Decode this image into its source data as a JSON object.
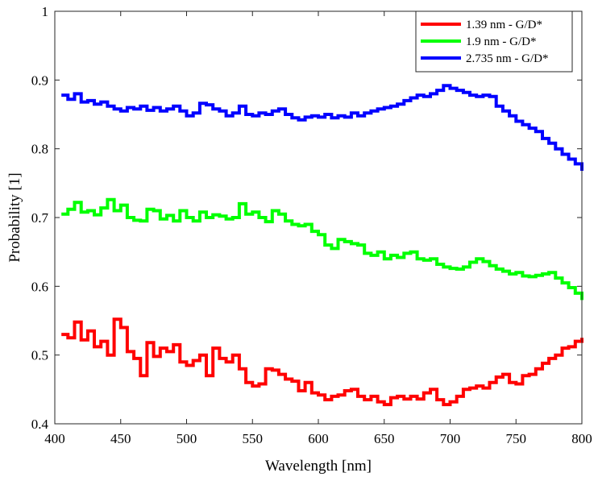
{
  "chart_data": {
    "type": "line",
    "xlabel": "Wavelength [nm]",
    "ylabel": "Probability [1]",
    "xlim": [
      400,
      800
    ],
    "ylim": [
      0.4,
      1.0
    ],
    "x_ticks": [
      400,
      450,
      500,
      550,
      600,
      650,
      700,
      750,
      800
    ],
    "y_ticks": [
      0.4,
      0.5,
      0.6,
      0.7,
      0.8,
      0.9,
      1.0
    ],
    "y_tick_labels": [
      "0.4",
      "0.5",
      "0.6",
      "0.7",
      "0.8",
      "0.9",
      "1"
    ],
    "grid": false,
    "legend_position": "top-right",
    "x": [
      405,
      410,
      415,
      420,
      425,
      430,
      435,
      440,
      445,
      450,
      455,
      460,
      465,
      470,
      475,
      480,
      485,
      490,
      495,
      500,
      505,
      510,
      515,
      520,
      525,
      530,
      535,
      540,
      545,
      550,
      555,
      560,
      565,
      570,
      575,
      580,
      585,
      590,
      595,
      600,
      605,
      610,
      615,
      620,
      625,
      630,
      635,
      640,
      645,
      650,
      655,
      660,
      665,
      670,
      675,
      680,
      685,
      690,
      695,
      700,
      705,
      710,
      715,
      720,
      725,
      730,
      735,
      740,
      745,
      750,
      755,
      760,
      765,
      770,
      775,
      780,
      785,
      790,
      795,
      800
    ],
    "series": [
      {
        "name": "1.39 nm - G/D*",
        "color": "#ff0000",
        "values": [
          0.53,
          0.525,
          0.548,
          0.522,
          0.535,
          0.512,
          0.52,
          0.5,
          0.552,
          0.54,
          0.505,
          0.495,
          0.47,
          0.518,
          0.498,
          0.51,
          0.505,
          0.515,
          0.49,
          0.485,
          0.492,
          0.5,
          0.47,
          0.51,
          0.495,
          0.49,
          0.5,
          0.48,
          0.46,
          0.455,
          0.458,
          0.48,
          0.478,
          0.472,
          0.465,
          0.462,
          0.448,
          0.46,
          0.445,
          0.442,
          0.435,
          0.44,
          0.442,
          0.448,
          0.45,
          0.44,
          0.435,
          0.44,
          0.432,
          0.428,
          0.438,
          0.44,
          0.436,
          0.44,
          0.436,
          0.445,
          0.45,
          0.435,
          0.428,
          0.432,
          0.44,
          0.45,
          0.452,
          0.455,
          0.452,
          0.46,
          0.468,
          0.472,
          0.46,
          0.458,
          0.47,
          0.472,
          0.48,
          0.488,
          0.495,
          0.5,
          0.51,
          0.512,
          0.52,
          0.525
        ]
      },
      {
        "name": "1.9 nm - G/D*",
        "color": "#00ff00",
        "values": [
          0.705,
          0.712,
          0.722,
          0.708,
          0.71,
          0.704,
          0.714,
          0.726,
          0.71,
          0.718,
          0.7,
          0.696,
          0.695,
          0.712,
          0.71,
          0.698,
          0.703,
          0.695,
          0.71,
          0.7,
          0.695,
          0.708,
          0.7,
          0.704,
          0.702,
          0.698,
          0.7,
          0.72,
          0.705,
          0.708,
          0.7,
          0.694,
          0.71,
          0.705,
          0.695,
          0.69,
          0.688,
          0.69,
          0.68,
          0.675,
          0.66,
          0.655,
          0.668,
          0.665,
          0.662,
          0.66,
          0.648,
          0.645,
          0.65,
          0.64,
          0.645,
          0.642,
          0.648,
          0.65,
          0.64,
          0.638,
          0.64,
          0.632,
          0.628,
          0.626,
          0.625,
          0.628,
          0.635,
          0.64,
          0.636,
          0.63,
          0.625,
          0.622,
          0.618,
          0.62,
          0.615,
          0.614,
          0.616,
          0.618,
          0.62,
          0.612,
          0.605,
          0.598,
          0.59,
          0.58
        ]
      },
      {
        "name": "2.735 nm - G/D*",
        "color": "#0000ff",
        "values": [
          0.878,
          0.872,
          0.88,
          0.868,
          0.87,
          0.865,
          0.868,
          0.862,
          0.858,
          0.855,
          0.86,
          0.858,
          0.862,
          0.856,
          0.86,
          0.855,
          0.858,
          0.862,
          0.855,
          0.848,
          0.852,
          0.866,
          0.864,
          0.858,
          0.855,
          0.848,
          0.852,
          0.862,
          0.85,
          0.848,
          0.852,
          0.85,
          0.855,
          0.858,
          0.85,
          0.845,
          0.842,
          0.846,
          0.848,
          0.846,
          0.85,
          0.845,
          0.848,
          0.846,
          0.852,
          0.848,
          0.852,
          0.855,
          0.858,
          0.86,
          0.862,
          0.865,
          0.87,
          0.874,
          0.878,
          0.876,
          0.88,
          0.885,
          0.892,
          0.888,
          0.885,
          0.882,
          0.878,
          0.876,
          0.878,
          0.876,
          0.862,
          0.855,
          0.848,
          0.84,
          0.835,
          0.83,
          0.825,
          0.815,
          0.808,
          0.8,
          0.792,
          0.785,
          0.778,
          0.768
        ]
      }
    ]
  }
}
